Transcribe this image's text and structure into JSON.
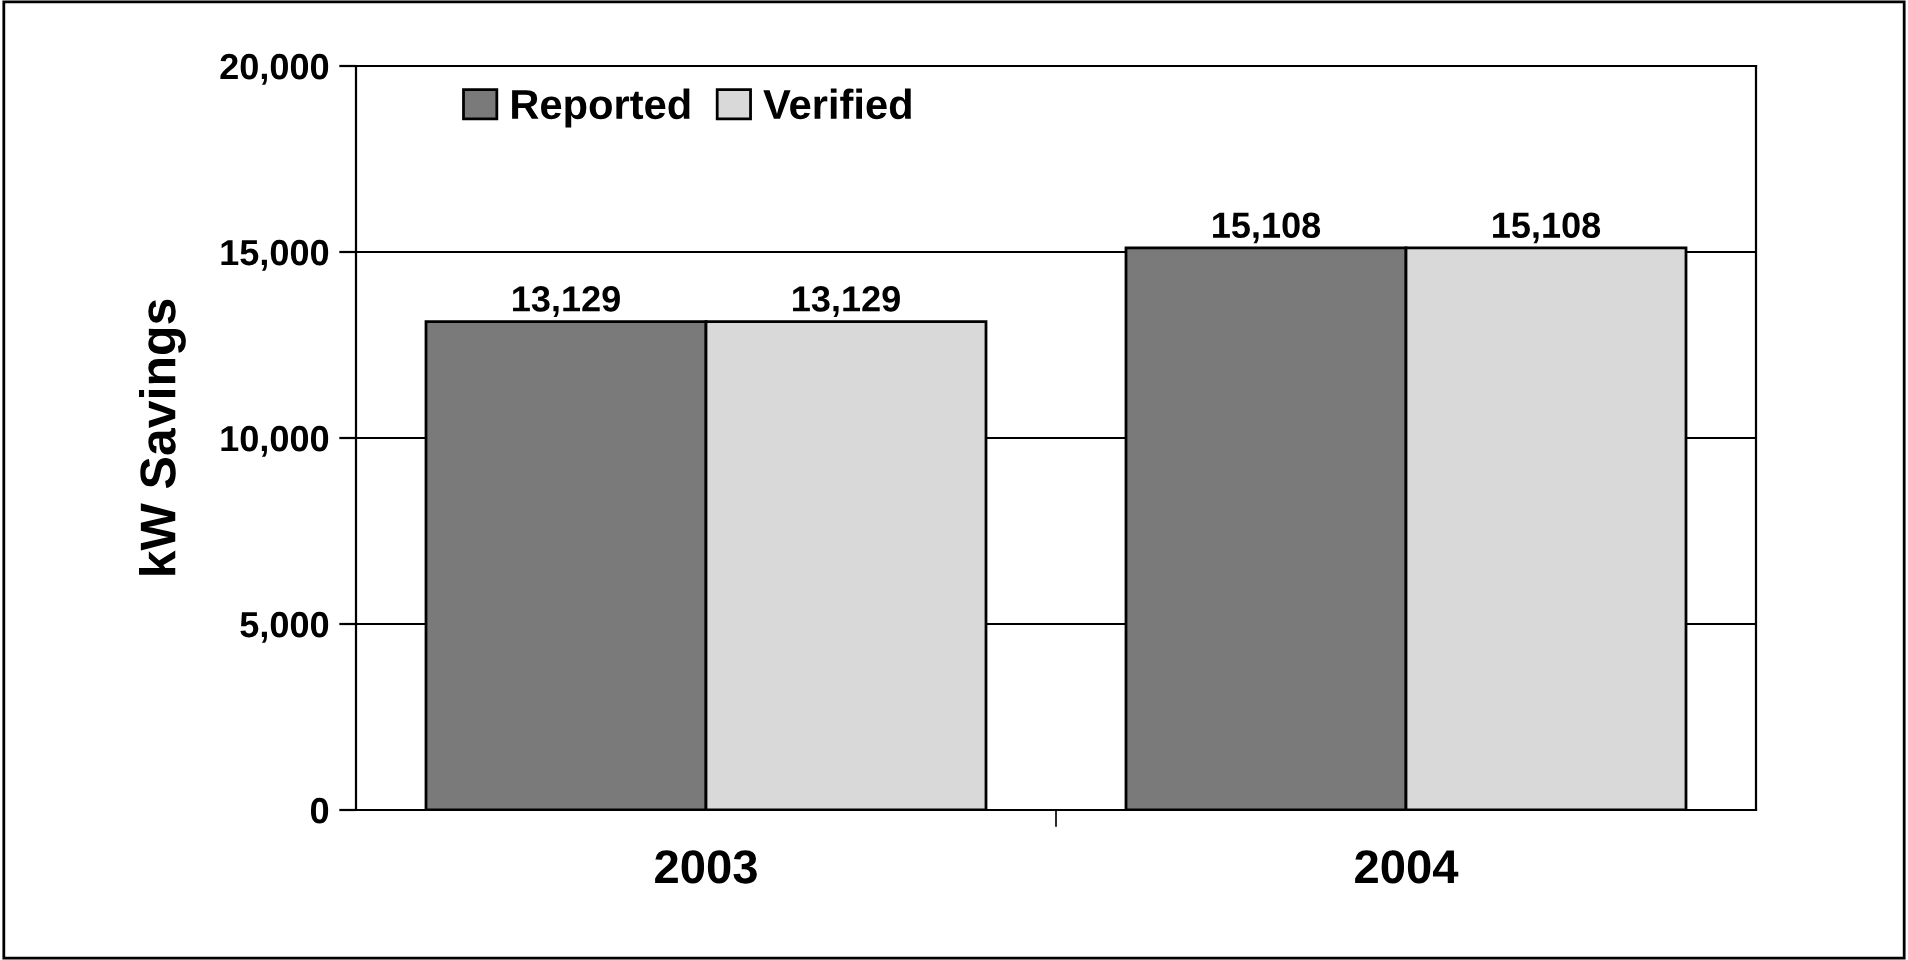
{
  "chart_data": {
    "type": "bar",
    "ylabel": "kW Savings",
    "categories": [
      "2003",
      "2004"
    ],
    "series": [
      {
        "name": "Reported",
        "color": "#7a7a7a",
        "values": [
          13129,
          15108
        ],
        "value_labels": [
          "13,129",
          "15,108"
        ]
      },
      {
        "name": "Verified",
        "color": "#d9d9d9",
        "values": [
          13129,
          15108
        ],
        "value_labels": [
          "13,129",
          "15,108"
        ]
      }
    ],
    "ylim": [
      0,
      20000
    ],
    "yticks": [
      {
        "value": 0,
        "label": "0"
      },
      {
        "value": 5000,
        "label": "5,000"
      },
      {
        "value": 10000,
        "label": "10,000"
      },
      {
        "value": 15000,
        "label": "15,000"
      },
      {
        "value": 20000,
        "label": "20,000"
      }
    ],
    "grid": "y",
    "legend": "top left"
  }
}
